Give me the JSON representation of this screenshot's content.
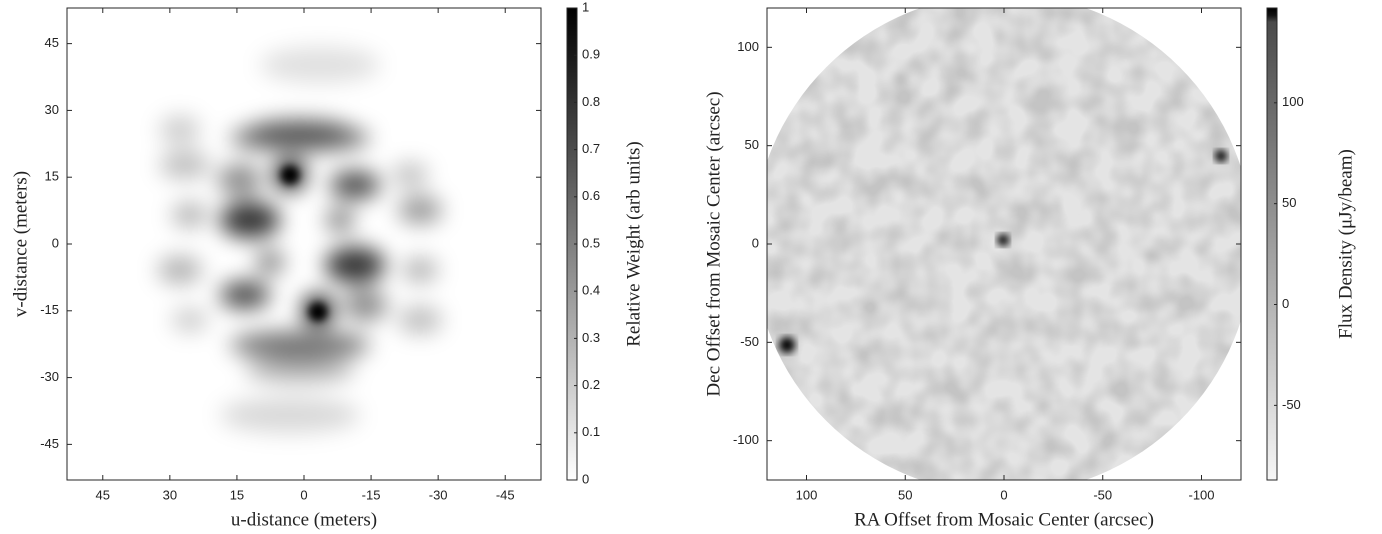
{
  "chart_data": [
    {
      "type": "heatmap",
      "xlabel": "u-distance (meters)",
      "ylabel": "v-distance (meters)",
      "xlim": [
        53,
        -53
      ],
      "ylim": [
        -53,
        53
      ],
      "xticks": [
        45,
        30,
        15,
        0,
        -15,
        -30,
        -45
      ],
      "yticks": [
        -45,
        -30,
        -15,
        0,
        15,
        30,
        45
      ],
      "colorbar": {
        "label": "Relative Weight (arb units)",
        "lim": [
          0,
          1
        ],
        "ticks": [
          0,
          0.1,
          0.2,
          0.3,
          0.4,
          0.5,
          0.6,
          0.7,
          0.8,
          0.9,
          1
        ]
      }
    },
    {
      "type": "heatmap",
      "xlabel": "RA Offset from Mosaic Center (arcsec)",
      "ylabel": "Dec Offset from Mosaic Center (arcsec)",
      "xlim": [
        120,
        -120
      ],
      "ylim": [
        -120,
        120
      ],
      "xticks": [
        100,
        50,
        0,
        -50,
        -100
      ],
      "yticks": [
        -100,
        -50,
        0,
        50,
        100
      ],
      "colorbar": {
        "label": "Flux Density (μJy/beam)",
        "lim": [
          -87,
          147
        ],
        "ticks": [
          -50,
          0,
          50,
          100
        ]
      }
    }
  ]
}
